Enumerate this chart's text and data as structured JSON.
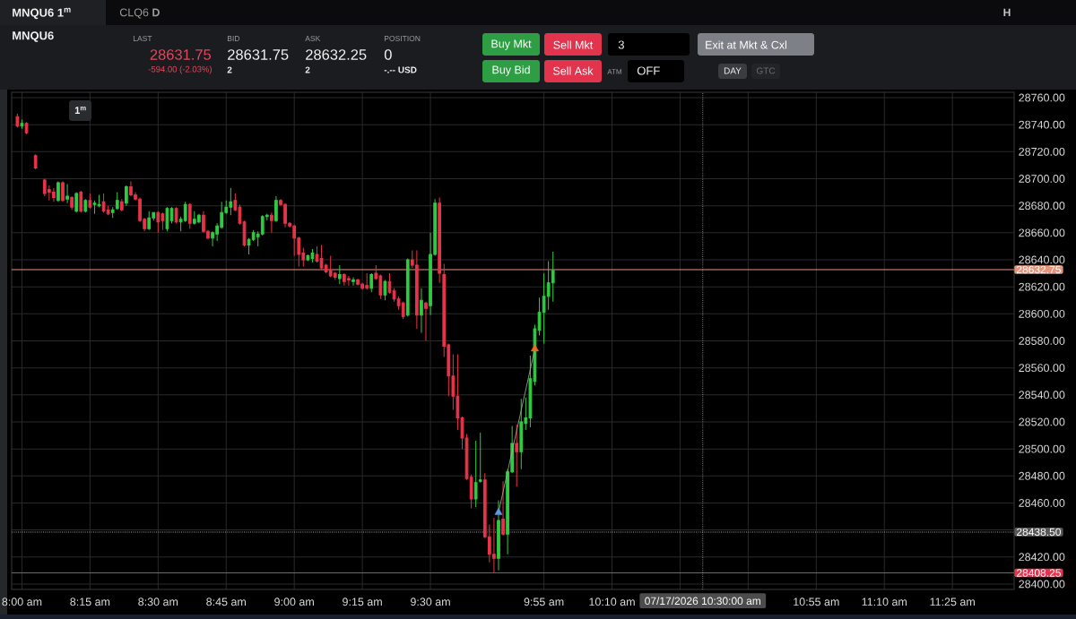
{
  "chart_data": {
    "type": "candlestick",
    "title": "MNQU6 1$^{m}$",
    "subtitle": "MNQU6",
    "annotations": [
      "CLQ6 **D**",
      "LAST",
      "28631.75",
      "-594.00 (-2.03%)",
      "BID",
      "28631.75",
      "2",
      "ASK",
      "28632.25",
      "2",
      "POSITION",
      "0",
      "-.-- USD",
      "Buy Mkt",
      "Sell Mkt",
      "3",
      "Exit at Mkt & Cxl",
      "Buy Bid",
      "Sell Ask",
      "ATM",
      "OFF",
      "DAY",
      "GTC",
      "H",
      "1$^{m}$"
    ],
    "x": [
      7.9833,
      8.0,
      8.0167,
      8.05,
      8.0833,
      8.1,
      8.1167,
      8.1333,
      8.15,
      8.1667,
      8.1833,
      8.2,
      8.2167,
      8.2333,
      8.25,
      8.2667,
      8.2833,
      8.3,
      8.3167,
      8.3333,
      8.35,
      8.3667,
      8.3833,
      8.4,
      8.4167,
      8.4333,
      8.45,
      8.4667,
      8.4833,
      8.5,
      8.5167,
      8.5333,
      8.55,
      8.5667,
      8.5833,
      8.6,
      8.6167,
      8.6333,
      8.65,
      8.6667,
      8.6833,
      8.7,
      8.7167,
      8.7333,
      8.75,
      8.7667,
      8.7833,
      8.8,
      8.8167,
      8.8333,
      8.85,
      8.8667,
      8.8833,
      8.9,
      8.9167,
      8.9333,
      8.95,
      8.9667,
      8.9833,
      9.0,
      9.0167,
      9.0333,
      9.05,
      9.0667,
      9.0833,
      9.1,
      9.1167,
      9.1333,
      9.15,
      9.1667,
      9.1833,
      9.2,
      9.2167,
      9.2333,
      9.25,
      9.2667,
      9.2833,
      9.3,
      9.3167,
      9.3333,
      9.35,
      9.3667,
      9.3833,
      9.4,
      9.4167,
      9.4333,
      9.45,
      9.4667,
      9.4833,
      9.5,
      9.5167,
      9.5333,
      9.55,
      9.5667,
      9.5833,
      9.6,
      9.6167,
      9.6333,
      9.65,
      9.6667,
      9.6833,
      9.7,
      9.7167,
      9.7333,
      9.75,
      9.7667,
      9.7833,
      9.8,
      9.8167,
      9.8333,
      9.85,
      9.8667,
      9.8833,
      9.9,
      9.9167,
      9.9333,
      9.95
    ],
    "ohlc": [
      [
        28746,
        28748,
        28738,
        28739
      ],
      [
        28739,
        28744,
        28737,
        28741
      ],
      [
        28741,
        28742,
        28733,
        28734
      ],
      [
        28717,
        28718,
        28707,
        28708
      ],
      [
        28699,
        28700,
        28687,
        28689
      ],
      [
        28692,
        28695,
        28684,
        28690
      ],
      [
        28690,
        28693,
        28683,
        28686
      ],
      [
        28684,
        28698,
        28683,
        28697
      ],
      [
        28697,
        28698,
        28683,
        28684
      ],
      [
        28685,
        28696,
        28682,
        28687
      ],
      [
        28686,
        28687,
        28677,
        28679
      ],
      [
        28676,
        28690,
        28675,
        28689
      ],
      [
        28690,
        28691,
        28675,
        28676
      ],
      [
        28676,
        28685,
        28675,
        28684
      ],
      [
        28684,
        28689,
        28678,
        28679
      ],
      [
        28681,
        28684,
        28674,
        28682
      ],
      [
        28680,
        28688,
        28679,
        28681
      ],
      [
        28683,
        28689,
        28675,
        28676
      ],
      [
        28677,
        28680,
        28673,
        28674
      ],
      [
        28675,
        28679,
        28671,
        28677
      ],
      [
        28678,
        28690,
        28677,
        28684
      ],
      [
        28683,
        28685,
        28676,
        28677
      ],
      [
        28682,
        28695,
        28680,
        28694
      ],
      [
        28694,
        28698,
        28687,
        28688
      ],
      [
        28688,
        28690,
        28684,
        28685
      ],
      [
        28685,
        28686,
        28668,
        28669
      ],
      [
        28670,
        28671,
        28661,
        28663
      ],
      [
        28663,
        28676,
        28662,
        28671
      ],
      [
        28671,
        28675,
        28669,
        28675
      ],
      [
        28675,
        28676,
        28660,
        28668
      ],
      [
        28674,
        28675,
        28662,
        28669
      ],
      [
        28663,
        28679,
        28661,
        28678
      ],
      [
        28669,
        28679,
        28667,
        28678
      ],
      [
        28678,
        28679,
        28667,
        28668
      ],
      [
        28668,
        28672,
        28661,
        28670
      ],
      [
        28669,
        28683,
        28668,
        28681
      ],
      [
        28681,
        28682,
        28663,
        28667
      ],
      [
        28667,
        28676,
        28666,
        28670
      ],
      [
        28668,
        28674,
        28667,
        28673
      ],
      [
        28673,
        28676,
        28660,
        28661
      ],
      [
        28661,
        28662,
        28655,
        28656
      ],
      [
        28656,
        28661,
        28650,
        28660
      ],
      [
        28659,
        28667,
        28654,
        28665
      ],
      [
        28664,
        28683,
        28663,
        28675
      ],
      [
        28675,
        28684,
        28674,
        28679
      ],
      [
        28679,
        28693,
        28673,
        28683
      ],
      [
        28684,
        28689,
        28676,
        28677
      ],
      [
        28679,
        28681,
        28666,
        28667
      ],
      [
        28668,
        28669,
        28650,
        28651
      ],
      [
        28651,
        28656,
        28644,
        28655
      ],
      [
        28655,
        28662,
        28654,
        28660
      ],
      [
        28657,
        28661,
        28650,
        28659
      ],
      [
        28659,
        28673,
        28658,
        28672
      ],
      [
        28672,
        28674,
        28669,
        28673
      ],
      [
        28673,
        28675,
        28660,
        28669
      ],
      [
        28669,
        28687,
        28668,
        28684
      ],
      [
        28684,
        28685,
        28680,
        28681
      ],
      [
        28681,
        28682,
        28664,
        28667
      ],
      [
        28667,
        28668,
        28664,
        28665
      ],
      [
        28665,
        28666,
        28643,
        28656
      ],
      [
        28656,
        28657,
        28635,
        28644
      ],
      [
        28645,
        28649,
        28635,
        28640
      ],
      [
        28640,
        28644,
        28639,
        28643
      ],
      [
        28641,
        28648,
        28638,
        28645
      ],
      [
        28644,
        28650,
        28638,
        28639
      ],
      [
        28641,
        28651,
        28633,
        28634
      ],
      [
        28636,
        28637,
        28630,
        28631
      ],
      [
        28632,
        28643,
        28627,
        28628
      ],
      [
        28630,
        28631,
        28625,
        28627
      ],
      [
        28626,
        28636,
        28622,
        28629
      ],
      [
        28629,
        28630,
        28621,
        28624
      ],
      [
        28626,
        28628,
        28621,
        28625
      ],
      [
        28624,
        28627,
        28621,
        28625
      ],
      [
        28625,
        28626,
        28621,
        28622
      ],
      [
        28622,
        28623,
        28618,
        28619
      ],
      [
        28621,
        28630,
        28618,
        28619
      ],
      [
        28619,
        28630,
        28616,
        28629
      ],
      [
        28630,
        28636,
        28625,
        28626
      ],
      [
        28628,
        28629,
        28611,
        28614
      ],
      [
        28614,
        28625,
        28610,
        28624
      ],
      [
        28624,
        28630,
        28615,
        28616
      ],
      [
        28617,
        28619,
        28609,
        28611
      ],
      [
        28611,
        28613,
        28603,
        28606
      ],
      [
        28608,
        28609,
        28596,
        28598
      ],
      [
        28599,
        28641,
        28598,
        28640
      ],
      [
        28640,
        28647,
        28634,
        28636
      ],
      [
        28636,
        28647,
        28589,
        28599
      ],
      [
        28599,
        28619,
        28586,
        28610
      ],
      [
        28608,
        28609,
        28580,
        28604
      ],
      [
        28606,
        28660,
        28599,
        28644
      ],
      [
        28644,
        28685,
        28643,
        28682
      ],
      [
        28682,
        28686,
        28623,
        28630
      ],
      [
        28629,
        28637,
        28568,
        28576
      ],
      [
        28577,
        28578,
        28539,
        28554
      ],
      [
        28554,
        28570,
        28529,
        28539
      ],
      [
        28539,
        28570,
        28514,
        28523
      ],
      [
        28523,
        28524,
        28500,
        28508
      ],
      [
        28508,
        28511,
        28477,
        28478
      ],
      [
        28479,
        28481,
        28456,
        28463
      ],
      [
        28463,
        28506,
        28457,
        28475
      ],
      [
        28476,
        28512,
        28475,
        28477
      ],
      [
        28477,
        28482,
        28434,
        28435
      ],
      [
        28435,
        28444,
        28416,
        28422
      ],
      [
        28422,
        28449,
        28408,
        28419
      ],
      [
        28419,
        28462,
        28410,
        28447
      ],
      [
        28448,
        28476,
        28436,
        28437
      ],
      [
        28437,
        28485,
        28422,
        28483
      ],
      [
        28483,
        28517,
        28482,
        28504
      ],
      [
        28504,
        28518,
        28472,
        28498
      ],
      [
        28498,
        28537,
        28485,
        28520
      ],
      [
        28519,
        28538,
        28514,
        28523
      ],
      [
        28523,
        28569,
        28516,
        28552
      ],
      [
        28550,
        28592,
        28547,
        28589
      ],
      [
        28588,
        28612,
        28584,
        28601
      ],
      [
        28601,
        28630,
        28578,
        28613
      ],
      [
        28613,
        28639,
        28603,
        28623
      ],
      [
        28623,
        28646,
        28609,
        28632
      ]
    ],
    "colors": [
      "#e8334a",
      "#2ecc40",
      "#e8334a",
      "#e8334a",
      "#e8334a",
      "#e8334a",
      "#e8334a",
      "#2ecc40",
      "#e8334a",
      "#2ecc40",
      "#e8334a",
      "#2ecc40",
      "#e8334a",
      "#2ecc40",
      "#e8334a",
      "#2ecc40",
      "#2ecc40",
      "#e8334a",
      "#e8334a",
      "#2ecc40",
      "#2ecc40",
      "#e8334a",
      "#2ecc40",
      "#e8334a",
      "#e8334a",
      "#e8334a",
      "#e8334a",
      "#2ecc40",
      "#2ecc40",
      "#e8334a",
      "#e8334a",
      "#2ecc40",
      "#2ecc40",
      "#e8334a",
      "#2ecc40",
      "#2ecc40",
      "#e8334a",
      "#2ecc40",
      "#2ecc40",
      "#e8334a",
      "#e8334a",
      "#2ecc40",
      "#2ecc40",
      "#2ecc40",
      "#2ecc40",
      "#2ecc40",
      "#e8334a",
      "#e8334a",
      "#e8334a",
      "#2ecc40",
      "#2ecc40",
      "#2ecc40",
      "#2ecc40",
      "#2ecc40",
      "#e8334a",
      "#2ecc40",
      "#e8334a",
      "#e8334a",
      "#e8334a",
      "#e8334a",
      "#e8334a",
      "#e8334a",
      "#2ecc40",
      "#2ecc40",
      "#e8334a",
      "#e8334a",
      "#e8334a",
      "#e8334a",
      "#e8334a",
      "#2ecc40",
      "#e8334a",
      "#e8334a",
      "#2ecc40",
      "#e8334a",
      "#e8334a",
      "#e8334a",
      "#2ecc40",
      "#e8334a",
      "#e8334a",
      "#2ecc40",
      "#e8334a",
      "#e8334a",
      "#e8334a",
      "#e8334a",
      "#2ecc40",
      "#e8334a",
      "#e8334a",
      "#2ecc40",
      "#e8334a",
      "#2ecc40",
      "#2ecc40",
      "#e8334a",
      "#e8334a",
      "#e8334a",
      "#e8334a",
      "#e8334a",
      "#e8334a",
      "#e8334a",
      "#e8334a",
      "#2ecc40",
      "#2ecc40",
      "#e8334a",
      "#e8334a",
      "#e8334a",
      "#2ecc40",
      "#e8334a",
      "#2ecc40",
      "#2ecc40",
      "#e8334a",
      "#2ecc40",
      "#2ecc40",
      "#2ecc40",
      "#2ecc40",
      "#2ecc40",
      "#2ecc40",
      "#2ecc40",
      "#2ecc40"
    ],
    "series": [
      {
        "type": "line",
        "x": [
          9.75,
          9.8833
        ],
        "values": [
          28453,
          28574
        ],
        "color": "#9db89a",
        "marker": "triangle",
        "colors": [
          "#5b9be0",
          "#f06a1e"
        ]
      }
    ],
    "xlim": [
      7.9623,
      11.6433
    ],
    "xticks": [
      {
        "value": 8,
        "label": "8:00 am"
      },
      {
        "value": 8.25,
        "label": "8:15 am"
      },
      {
        "value": 8.5,
        "label": "8:30 am"
      },
      {
        "value": 8.75,
        "label": "8:45 am"
      },
      {
        "value": 9,
        "label": "9:00 am"
      },
      {
        "value": 9.25,
        "label": "9:15 am"
      },
      {
        "value": 9.5,
        "label": "9:30 am"
      },
      {
        "value": 9.9167,
        "label": "9:55 am"
      },
      {
        "value": 10.1667,
        "label": "10:10 am"
      },
      {
        "value": 10.4167,
        "label": null
      },
      {
        "value": 10.6667,
        "label": null
      },
      {
        "value": 10.9167,
        "label": "10:55 am"
      },
      {
        "value": 11.1667,
        "label": "11:10 am"
      },
      {
        "value": 11.4167,
        "label": "11:25 am"
      }
    ],
    "ylim": [
      28396,
      28764
    ],
    "yticks": [
      {
        "value": 28400,
        "label": "28400.00"
      },
      {
        "value": 28420,
        "label": "28420.00"
      },
      {
        "value": 28440,
        "label": null
      },
      {
        "value": 28460,
        "label": "28460.00"
      },
      {
        "value": 28480,
        "label": "28480.00"
      },
      {
        "value": 28500,
        "label": "28500.00"
      },
      {
        "value": 28520,
        "label": "28520.00"
      },
      {
        "value": 28540,
        "label": "28540.00"
      },
      {
        "value": 28560,
        "label": "28560.00"
      },
      {
        "value": 28580,
        "label": "28580.00"
      },
      {
        "value": 28600,
        "label": "28600.00"
      },
      {
        "value": 28620,
        "label": "28620.00"
      },
      {
        "value": 28640,
        "label": "28640.00"
      },
      {
        "value": 28660,
        "label": "28660.00"
      },
      {
        "value": 28680,
        "label": "28680.00"
      },
      {
        "value": 28700,
        "label": "28700.00"
      },
      {
        "value": 28720,
        "label": "28720.00"
      },
      {
        "value": 28740,
        "label": "28740.00"
      },
      {
        "value": 28760,
        "label": "28760.00"
      }
    ],
    "ref_lines": [
      {
        "axis": "y",
        "value": 28632.75,
        "label": "28632.75",
        "color": "#e8957c",
        "line_style": "solid"
      },
      {
        "axis": "y",
        "value": 28438.5,
        "label": "28438.50",
        "color": "#a0a0a0",
        "line_style": "dotted"
      },
      {
        "axis": "y",
        "value": 28408.25,
        "label": "28408.25",
        "color": "#e0344f",
        "line_style": "solid"
      },
      {
        "axis": "x",
        "value": 10.5,
        "label": "07/17/2026 10:30:00 am",
        "color": "#8a8a8a",
        "line_style": "dotted"
      }
    ],
    "grid": true
  }
}
